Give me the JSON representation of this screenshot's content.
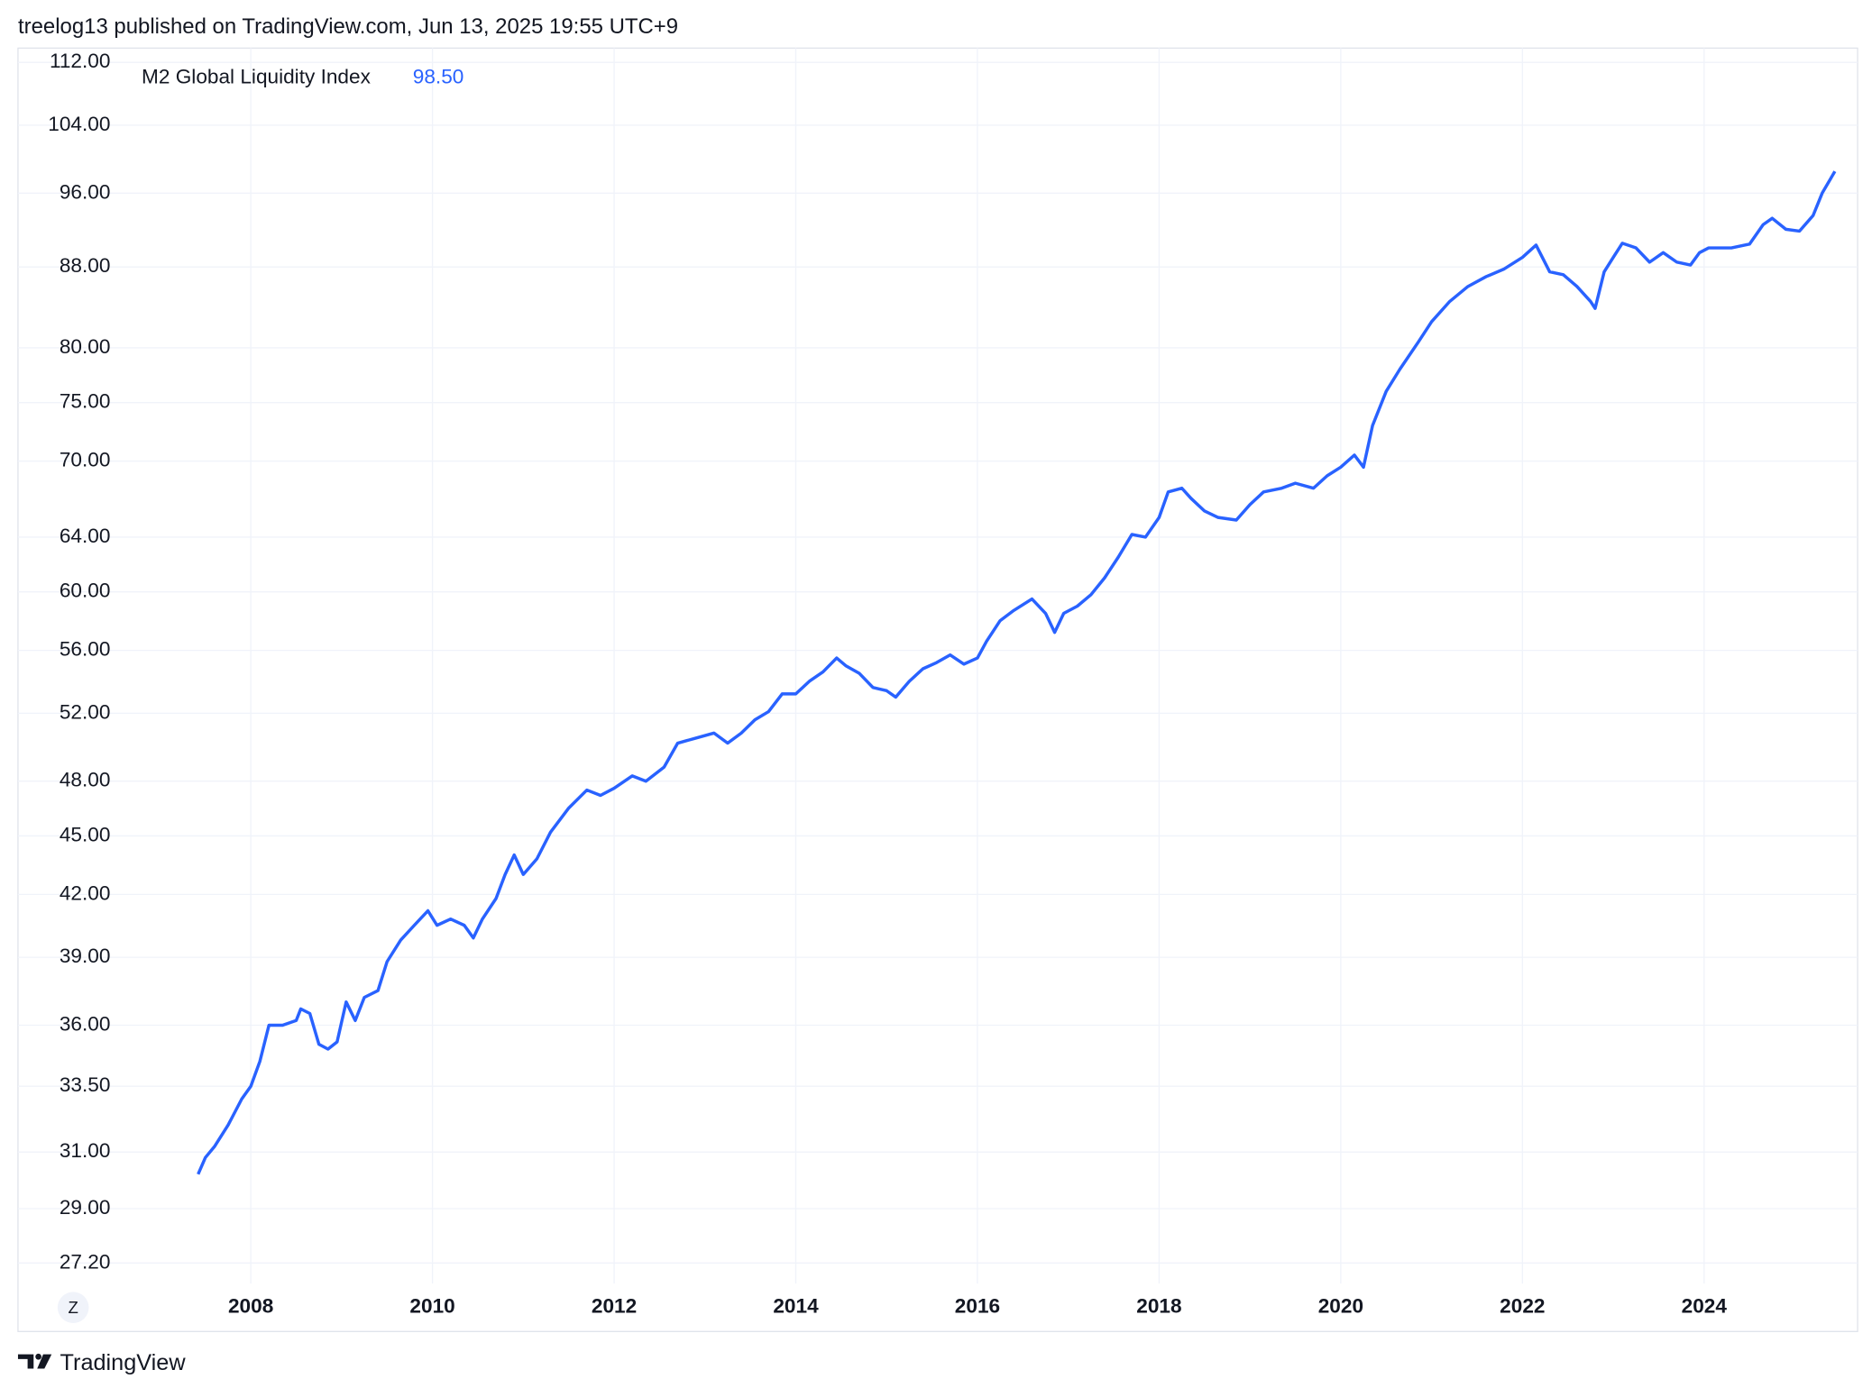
{
  "header": "treelog13 published on TradingView.com, Jun 13, 2025 19:55 UTC+9",
  "footer": "TradingView",
  "zoom_button": "Z",
  "chart_data": {
    "type": "line",
    "log_scale": true,
    "grid": true,
    "legend": "top-left",
    "legend_value": "98.50",
    "xlim": [
      2006.56,
      2025.69
    ],
    "xticks": [
      2008,
      2010,
      2012,
      2014,
      2016,
      2018,
      2020,
      2022,
      2024
    ],
    "ylim": [
      26.55,
      113.9
    ],
    "yticks": [
      {
        "value": 112,
        "label": "112.00"
      },
      {
        "value": 104,
        "label": "104.00"
      },
      {
        "value": 96,
        "label": "96.00"
      },
      {
        "value": 88,
        "label": "88.00"
      },
      {
        "value": 80,
        "label": "80.00"
      },
      {
        "value": 75,
        "label": "75.00"
      },
      {
        "value": 70,
        "label": "70.00"
      },
      {
        "value": 64,
        "label": "64.00"
      },
      {
        "value": 60,
        "label": "60.00"
      },
      {
        "value": 56,
        "label": "56.00"
      },
      {
        "value": 52,
        "label": "52.00"
      },
      {
        "value": 48,
        "label": "48.00"
      },
      {
        "value": 45,
        "label": "45.00"
      },
      {
        "value": 42,
        "label": "42.00"
      },
      {
        "value": 39,
        "label": "39.00"
      },
      {
        "value": 36,
        "label": "36.00"
      },
      {
        "value": 33.5,
        "label": "33.50"
      },
      {
        "value": 31,
        "label": "31.00"
      },
      {
        "value": 29,
        "label": "29.00"
      },
      {
        "value": 27.2,
        "label": "27.20"
      }
    ],
    "x": [
      2007.42,
      2007.5,
      2007.6,
      2007.75,
      2007.9,
      2008.0,
      2008.1,
      2008.2,
      2008.35,
      2008.5,
      2008.55,
      2008.65,
      2008.75,
      2008.85,
      2008.95,
      2009.05,
      2009.15,
      2009.25,
      2009.4,
      2009.5,
      2009.65,
      2009.8,
      2009.95,
      2010.05,
      2010.2,
      2010.35,
      2010.45,
      2010.55,
      2010.7,
      2010.8,
      2010.9,
      2011.0,
      2011.15,
      2011.3,
      2011.5,
      2011.7,
      2011.85,
      2012.0,
      2012.2,
      2012.35,
      2012.55,
      2012.7,
      2012.9,
      2013.1,
      2013.25,
      2013.4,
      2013.55,
      2013.7,
      2013.85,
      2014.0,
      2014.15,
      2014.3,
      2014.45,
      2014.55,
      2014.7,
      2014.85,
      2015.0,
      2015.1,
      2015.25,
      2015.4,
      2015.55,
      2015.7,
      2015.85,
      2016.0,
      2016.1,
      2016.25,
      2016.4,
      2016.6,
      2016.75,
      2016.85,
      2016.95,
      2017.1,
      2017.25,
      2017.4,
      2017.55,
      2017.7,
      2017.85,
      2018.0,
      2018.1,
      2018.25,
      2018.35,
      2018.5,
      2018.65,
      2018.85,
      2019.0,
      2019.15,
      2019.35,
      2019.5,
      2019.7,
      2019.85,
      2020.0,
      2020.15,
      2020.25,
      2020.35,
      2020.5,
      2020.65,
      2020.85,
      2021.0,
      2021.2,
      2021.4,
      2021.6,
      2021.8,
      2022.0,
      2022.15,
      2022.3,
      2022.45,
      2022.6,
      2022.75,
      2022.8,
      2022.9,
      2023.0,
      2023.1,
      2023.25,
      2023.4,
      2023.55,
      2023.7,
      2023.85,
      2023.95,
      2024.05,
      2024.3,
      2024.5,
      2024.65,
      2024.75,
      2024.9,
      2025.05,
      2025.2,
      2025.3,
      2025.44
    ],
    "series": [
      {
        "name": "M2 Global Liquidity Index",
        "color": "#2962ff",
        "values": [
          30.2,
          30.8,
          31.2,
          32.0,
          33.0,
          33.5,
          34.5,
          36.0,
          36.0,
          36.2,
          36.7,
          36.5,
          35.2,
          35.0,
          35.3,
          37.0,
          36.2,
          37.2,
          37.5,
          38.8,
          39.8,
          40.5,
          41.2,
          40.5,
          40.8,
          40.5,
          39.9,
          40.8,
          41.8,
          43.0,
          44.0,
          43.0,
          43.8,
          45.2,
          46.5,
          47.5,
          47.2,
          47.6,
          48.3,
          48.0,
          48.8,
          50.2,
          50.5,
          50.8,
          50.2,
          50.8,
          51.6,
          52.1,
          53.2,
          53.2,
          54.0,
          54.6,
          55.5,
          55.0,
          54.5,
          53.6,
          53.4,
          53.0,
          54.0,
          54.8,
          55.2,
          55.7,
          55.1,
          55.5,
          56.6,
          58.0,
          58.7,
          59.5,
          58.5,
          57.2,
          58.5,
          59.0,
          59.8,
          61.0,
          62.5,
          64.2,
          64.0,
          65.5,
          67.5,
          67.8,
          67.0,
          66.0,
          65.5,
          65.3,
          66.5,
          67.5,
          67.8,
          68.2,
          67.8,
          68.8,
          69.5,
          70.5,
          69.5,
          73.0,
          76.0,
          78.0,
          80.5,
          82.5,
          84.5,
          86.0,
          87.0,
          87.8,
          89.0,
          90.3,
          87.5,
          87.2,
          86.0,
          84.5,
          83.8,
          87.5,
          89.0,
          90.5,
          90.0,
          88.5,
          89.5,
          88.5,
          88.2,
          89.5,
          90.0,
          90.0,
          90.4,
          92.5,
          93.2,
          92.0,
          91.8,
          93.5,
          96.0,
          98.5
        ]
      }
    ]
  }
}
